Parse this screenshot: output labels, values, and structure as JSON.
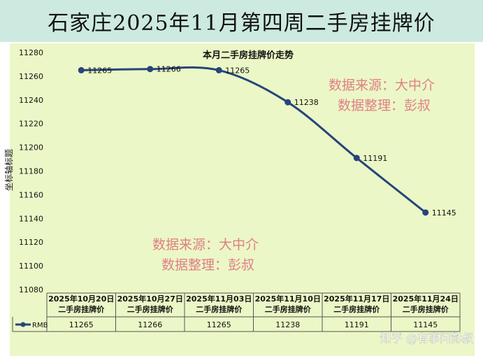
{
  "header": {
    "title": "石家庄2025年11月第四周二手房挂牌价"
  },
  "chart_data": {
    "type": "line",
    "title": "本月二手房挂牌价走势",
    "ylabel": "坐标轴标题",
    "xlabel": "",
    "ylim": [
      11080,
      11280
    ],
    "yticks": [
      11080,
      11100,
      11120,
      11140,
      11160,
      11180,
      11200,
      11220,
      11240,
      11260,
      11280
    ],
    "categories": [
      [
        "2025年10月20日",
        "二手房挂牌价"
      ],
      [
        "2025年10月27日",
        "二手房挂牌价"
      ],
      [
        "2025年11月03日",
        "二手房挂牌价"
      ],
      [
        "2025年11月10日",
        "二手房挂牌价"
      ],
      [
        "2025年11月17日",
        "二手房挂牌价"
      ],
      [
        "2025年11月24日",
        "二手房挂牌价"
      ]
    ],
    "series": [
      {
        "name": "RMB",
        "values": [
          11265,
          11266,
          11265,
          11238,
          11191,
          11145
        ],
        "color": "#26457a"
      }
    ],
    "data_table": true,
    "grid": false
  },
  "watermarks": {
    "upper": [
      "数据来源：大中介",
      "数据整理：彭叔"
    ],
    "lower": [
      "数据来源：大中介",
      "数据整理：彭叔"
    ],
    "zhihu": "知乎 @有事问彭叔",
    "color": "#e07f86"
  }
}
